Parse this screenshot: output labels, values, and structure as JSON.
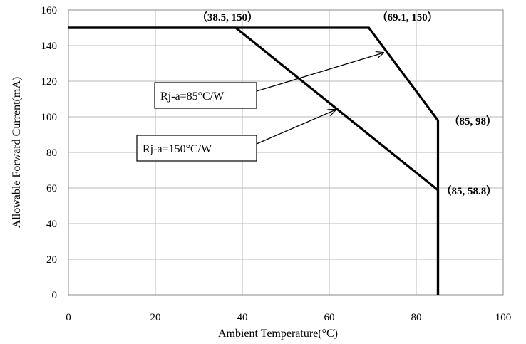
{
  "chart_data": {
    "type": "line",
    "xlabel": "Ambient Temperature(°C)",
    "ylabel": "Allowable Forward Current(mA)",
    "xlim": [
      0,
      100
    ],
    "ylim": [
      0,
      160
    ],
    "x_ticks": [
      0,
      20,
      40,
      60,
      80,
      100
    ],
    "y_ticks": [
      0,
      20,
      40,
      60,
      80,
      100,
      120,
      140,
      160
    ],
    "grid": true,
    "series": [
      {
        "name": "Rj-a=85°C/W",
        "points": [
          [
            0,
            150
          ],
          [
            69.1,
            150
          ],
          [
            85,
            98
          ],
          [
            85,
            0
          ]
        ]
      },
      {
        "name": "Rj-a=150°C/W",
        "points": [
          [
            0,
            150
          ],
          [
            38.5,
            150
          ],
          [
            85,
            58.8
          ],
          [
            85,
            0
          ]
        ]
      }
    ],
    "point_labels": [
      {
        "text": "（38.5, 150）",
        "x": 38.5,
        "y": 150
      },
      {
        "text": "（69.1, 150）",
        "x": 69.1,
        "y": 150
      },
      {
        "text": "（85, 98）",
        "x": 85,
        "y": 98
      },
      {
        "text": "（85, 58.8）",
        "x": 85,
        "y": 58.8
      }
    ],
    "callouts": [
      {
        "text": "Rj-a=85°C/W",
        "target": [
          72.5,
          136
        ]
      },
      {
        "text": "Rj-a=150°C/W",
        "target": [
          61.5,
          104
        ]
      }
    ]
  }
}
